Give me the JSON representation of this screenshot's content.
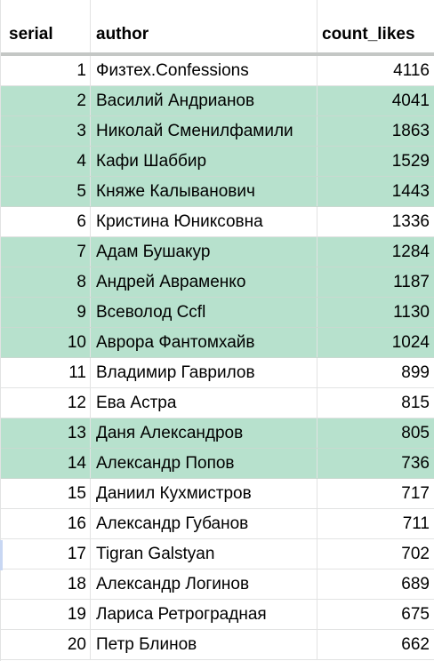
{
  "table": {
    "headers": {
      "serial": "serial",
      "author": "author",
      "count_likes": "count_likes"
    },
    "highlight_color": "#b7e1cd",
    "rows": [
      {
        "serial": "1",
        "author": "Физтех.Confessions",
        "count_likes": "4116",
        "highlighted": false
      },
      {
        "serial": "2",
        "author": "Василий Андрианов",
        "count_likes": "4041",
        "highlighted": true
      },
      {
        "serial": "3",
        "author": "Николай Сменилфамили",
        "count_likes": "1863",
        "highlighted": true
      },
      {
        "serial": "4",
        "author": "Кафи Шаббир",
        "count_likes": "1529",
        "highlighted": true
      },
      {
        "serial": "5",
        "author": "Княже Калыванович",
        "count_likes": "1443",
        "highlighted": true
      },
      {
        "serial": "6",
        "author": "Кристина Юниксовна",
        "count_likes": "1336",
        "highlighted": false
      },
      {
        "serial": "7",
        "author": "Адам Бушакур",
        "count_likes": "1284",
        "highlighted": true
      },
      {
        "serial": "8",
        "author": "Андрей Авраменко",
        "count_likes": "1187",
        "highlighted": true
      },
      {
        "serial": "9",
        "author": "Всеволод Ccfl",
        "count_likes": "1130",
        "highlighted": true
      },
      {
        "serial": "10",
        "author": "Аврора Фантомхайв",
        "count_likes": "1024",
        "highlighted": true
      },
      {
        "serial": "11",
        "author": "Владимир Гаврилов",
        "count_likes": "899",
        "highlighted": false
      },
      {
        "serial": "12",
        "author": "Ева Астра",
        "count_likes": "815",
        "highlighted": false
      },
      {
        "serial": "13",
        "author": "Даня Александров",
        "count_likes": "805",
        "highlighted": true
      },
      {
        "serial": "14",
        "author": "Александр Попов",
        "count_likes": "736",
        "highlighted": true
      },
      {
        "serial": "15",
        "author": "Даниил Кухмистров",
        "count_likes": "717",
        "highlighted": false
      },
      {
        "serial": "16",
        "author": "Александр Губанов",
        "count_likes": "711",
        "highlighted": false
      },
      {
        "serial": "17",
        "author": "Tigran Galstyan",
        "count_likes": "702",
        "highlighted": false
      },
      {
        "serial": "18",
        "author": "Александр Логинов",
        "count_likes": "689",
        "highlighted": false
      },
      {
        "serial": "19",
        "author": "Лариса Ретроградная",
        "count_likes": "675",
        "highlighted": false
      },
      {
        "serial": "20",
        "author": "Петр Блинов",
        "count_likes": "662",
        "highlighted": false
      }
    ]
  }
}
